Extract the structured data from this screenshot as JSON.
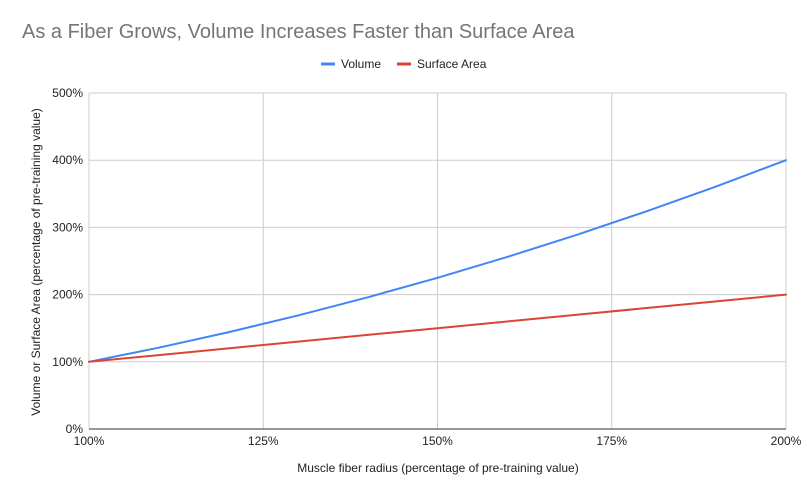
{
  "chart_data": {
    "type": "line",
    "title": "As a Fiber Grows, Volume Increases Faster than Surface Area",
    "xlabel": "Muscle fiber radius (percentage of pre-training value)",
    "ylabel": "Volume or Surface Area (percentage of pre-training value)",
    "xlim": [
      1.0,
      2.0
    ],
    "ylim": [
      0,
      5
    ],
    "x_ticks": [
      1.0,
      1.25,
      1.5,
      1.75,
      2.0
    ],
    "x_tick_labels": [
      "100%",
      "125%",
      "150%",
      "175%",
      "200%"
    ],
    "y_ticks": [
      0,
      1,
      2,
      3,
      4,
      5
    ],
    "y_tick_labels": [
      "0%",
      "100%",
      "200%",
      "300%",
      "400%",
      "500%"
    ],
    "grid": true,
    "legend_position": "top-center",
    "x": [
      1.0,
      1.1,
      1.2,
      1.3,
      1.4,
      1.5,
      1.6,
      1.7,
      1.8,
      1.9,
      2.0
    ],
    "series": [
      {
        "name": "Volume",
        "color": "#4285f4",
        "values": [
          1.0,
          1.21,
          1.44,
          1.69,
          1.96,
          2.25,
          2.56,
          2.89,
          3.24,
          3.61,
          4.0
        ]
      },
      {
        "name": "Surface Area",
        "color": "#db4437",
        "values": [
          1.0,
          1.1,
          1.2,
          1.3,
          1.4,
          1.5,
          1.6,
          1.7,
          1.8,
          1.9,
          2.0
        ]
      }
    ]
  }
}
